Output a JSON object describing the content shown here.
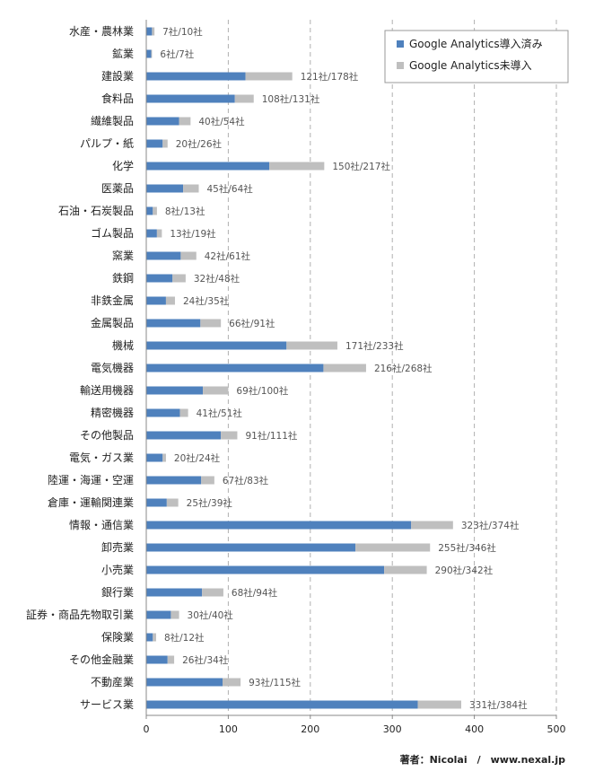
{
  "chart_data": {
    "type": "bar",
    "orientation": "horizontal",
    "stacked": true,
    "categories": [
      "水産・農林業",
      "鉱業",
      "建設業",
      "食料品",
      "繊維製品",
      "パルプ・紙",
      "化学",
      "医薬品",
      "石油・石炭製品",
      "ゴム製品",
      "窯業",
      "鉄鋼",
      "非鉄金属",
      "金属製品",
      "機械",
      "電気機器",
      "輸送用機器",
      "精密機器",
      "その他製品",
      "電気・ガス業",
      "陸運・海運・空運",
      "倉庫・運輸関連業",
      "情報・通信業",
      "卸売業",
      "小売業",
      "銀行業",
      "証券・商品先物取引業",
      "保険業",
      "その他金融業",
      "不動産業",
      "サービス業"
    ],
    "series": [
      {
        "name": "Google Analytics導入済み",
        "color": "#4f81bd",
        "values": [
          7,
          6,
          121,
          108,
          40,
          20,
          150,
          45,
          8,
          13,
          42,
          32,
          24,
          66,
          171,
          216,
          69,
          41,
          91,
          20,
          67,
          25,
          323,
          255,
          290,
          68,
          30,
          8,
          26,
          93,
          331
        ]
      },
      {
        "name": "Google Analytics未導入",
        "color": "#bfbfbf",
        "values": [
          3,
          1,
          57,
          23,
          14,
          6,
          67,
          19,
          5,
          6,
          19,
          16,
          11,
          25,
          62,
          52,
          31,
          10,
          20,
          4,
          16,
          14,
          51,
          91,
          52,
          26,
          10,
          4,
          8,
          22,
          53
        ]
      }
    ],
    "data_labels": [
      "7社/10社",
      "6社/7社",
      "121社/178社",
      "108社/131社",
      "40社/54社",
      "20社/26社",
      "150社/217社",
      "45社/64社",
      "8社/13社",
      "13社/19社",
      "42社/61社",
      "32社/48社",
      "24社/35社",
      "66社/91社",
      "171社/233社",
      "216社/268社",
      "69社/100社",
      "41社/51社",
      "91社/111社",
      "20社/24社",
      "67社/83社",
      "25社/39社",
      "323社/374社",
      "255社/346社",
      "290社/342社",
      "68社/94社",
      "30社/40社",
      "8社/12社",
      "26社/34社",
      "93社/115社",
      "331社/384社"
    ],
    "xlim": [
      0,
      500
    ],
    "xticks": [
      0,
      100,
      200,
      300,
      400,
      500
    ],
    "grid": "vertical dashed",
    "legend_position": "top-right"
  },
  "footer": {
    "credit": "著者：Nicolai　/　www.nexal.jp"
  }
}
